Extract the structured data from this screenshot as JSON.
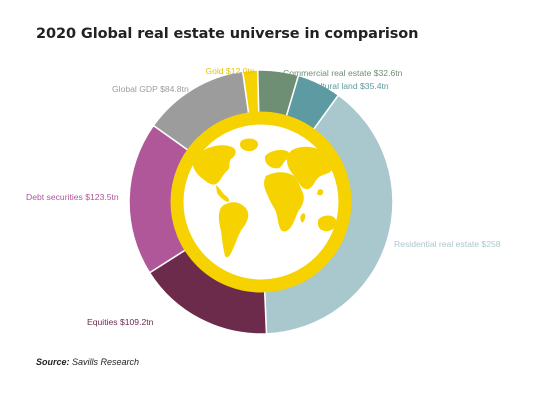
{
  "chart_data": {
    "type": "pie",
    "title": "2020 Global real estate universe in comparison",
    "unit": "tn",
    "categories": [
      "Gold",
      "Commercial real estate",
      "Agricultural land",
      "Residential real estate",
      "Equities",
      "Debt securities",
      "Global GDP"
    ],
    "values": [
      12.0,
      32.6,
      35.4,
      258,
      109.2,
      123.5,
      84.8
    ],
    "labels": [
      "Gold $12.0tn",
      "Commercial real estate $32.6tn",
      "Agricultural land $35.4tn",
      "Residential real estate $258",
      "Equities $109.2tn",
      "Debt securities $123.5tn",
      "Global GDP $84.8tn"
    ],
    "colors": [
      "#f5d200",
      "#6f8f74",
      "#5e9aa2",
      "#a9c8cd",
      "#6d2b4c",
      "#b0579a",
      "#9c9c9c"
    ],
    "label_colors": [
      "#e6c400",
      "#6f8f74",
      "#5e9aa2",
      "#a9c8cd",
      "#6d2b4c",
      "#b0579a",
      "#9c9c9c"
    ],
    "center_decoration": "globe-icon",
    "accent_color": "#f5d200"
  },
  "source": {
    "prefix": "Source:",
    "text": " Savills Research"
  }
}
